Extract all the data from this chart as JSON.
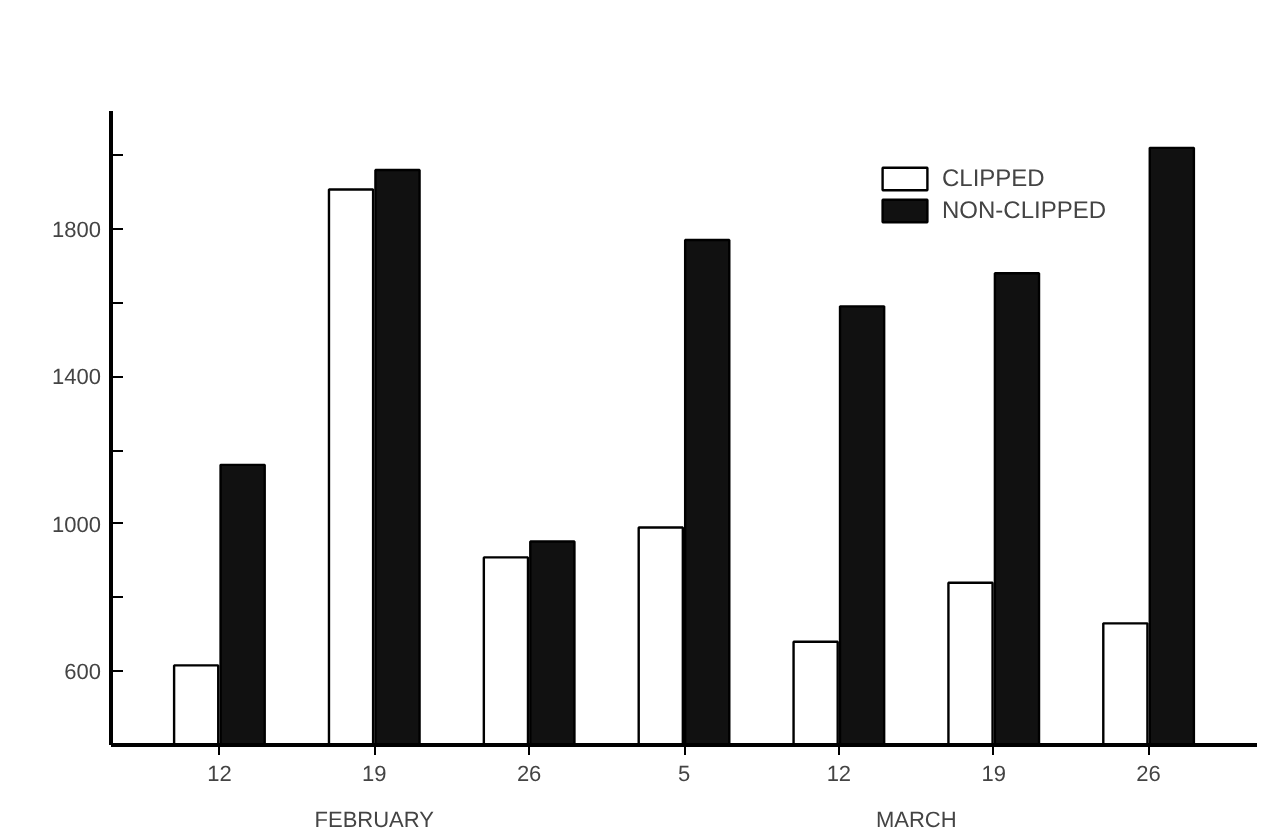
{
  "chart_data": {
    "type": "bar",
    "categories": [
      "12",
      "19",
      "26",
      "5",
      "12",
      "19",
      "26"
    ],
    "series": [
      {
        "name": "CLIPPED",
        "color": "#ffffff",
        "values": [
          616,
          1907,
          909,
          990,
          680,
          840,
          730
        ]
      },
      {
        "name": "NON-CLIPPED",
        "color": "#111111",
        "values": [
          1160,
          1960,
          952,
          1770,
          1590,
          1680,
          2020
        ]
      }
    ],
    "ylim": [
      400,
      2120
    ],
    "yticks": [
      600,
      {
        "value": 800,
        "label": null
      },
      1000,
      {
        "value": 1200,
        "label": null
      },
      1400,
      {
        "value": 1600,
        "label": null
      },
      1800,
      {
        "value": 2000,
        "label": null
      }
    ],
    "annotations": [
      "FEBRUARY",
      "MARCH"
    ],
    "grid": false,
    "legend": "top right"
  }
}
